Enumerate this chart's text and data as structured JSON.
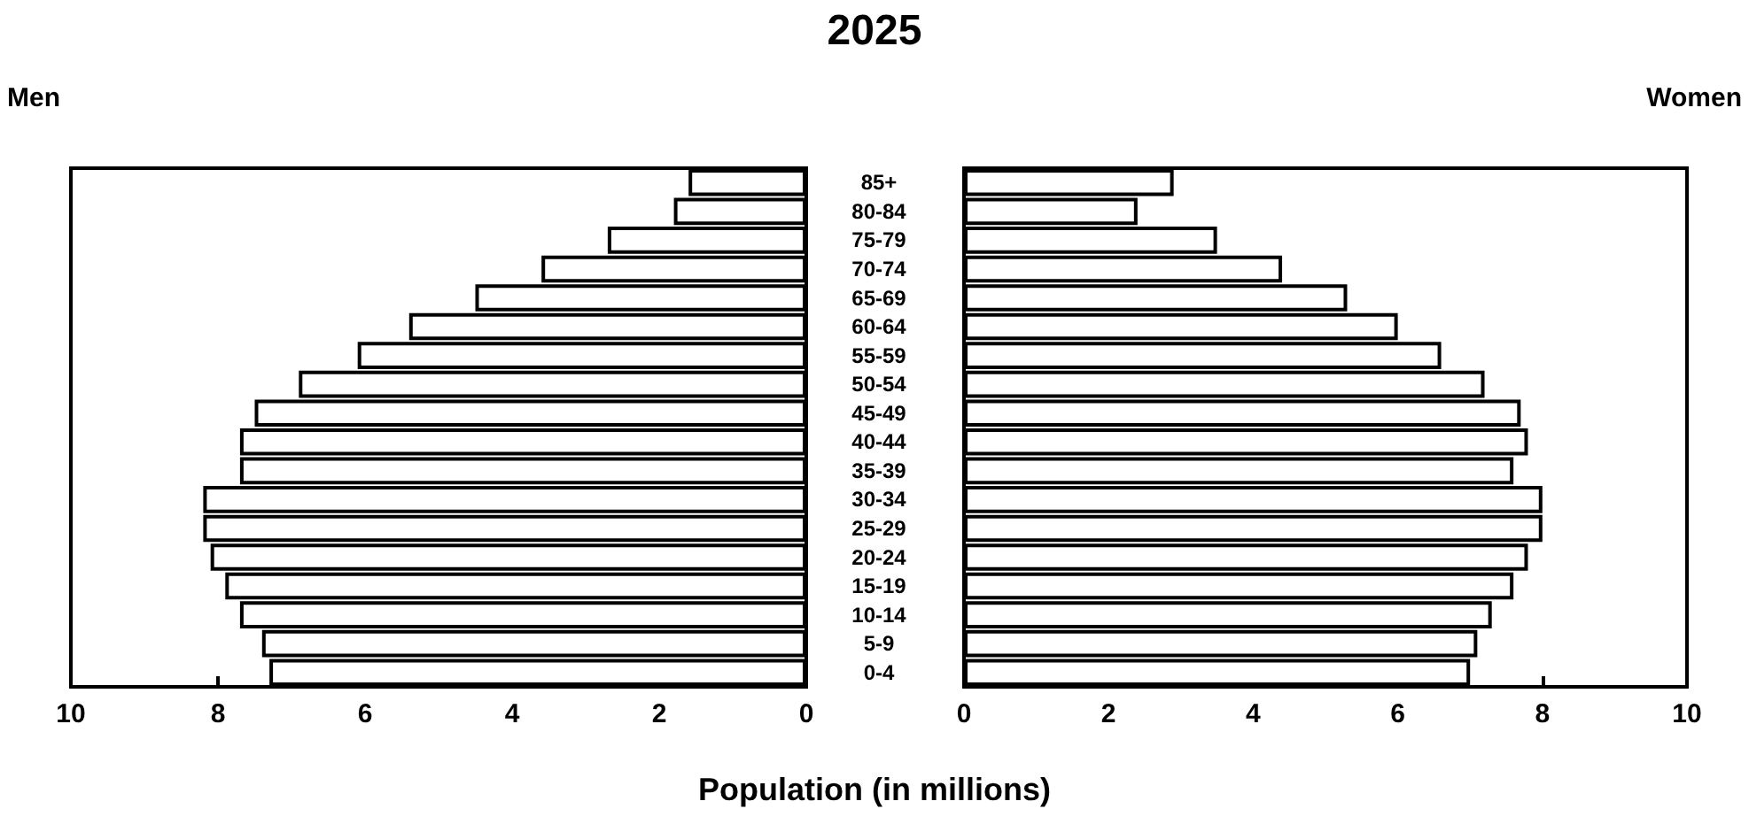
{
  "chart_data": [
    {
      "type": "bar",
      "orientation": "horizontal",
      "title": "2025",
      "xlabel": "Population (in millions)",
      "categories": [
        "85+",
        "80-84",
        "75-79",
        "70-74",
        "65-69",
        "60-64",
        "55-59",
        "50-54",
        "45-49",
        "40-44",
        "35-39",
        "30-34",
        "25-29",
        "20-24",
        "15-19",
        "10-14",
        "5-9",
        "0-4"
      ],
      "series": [
        {
          "name": "Men",
          "color": "#ffffff",
          "values": [
            1.6,
            1.8,
            2.7,
            3.6,
            4.5,
            5.4,
            6.1,
            6.9,
            7.5,
            7.7,
            7.7,
            8.2,
            8.2,
            8.1,
            7.9,
            7.7,
            7.4,
            7.3
          ]
        }
      ],
      "xlim": [
        10,
        0
      ],
      "xticks": [
        10,
        8,
        6,
        4,
        2,
        0
      ]
    },
    {
      "type": "bar",
      "orientation": "horizontal",
      "categories": [
        null,
        null,
        null,
        null,
        null,
        null,
        null,
        null,
        null,
        null,
        null,
        null,
        null,
        null,
        null,
        null,
        null,
        null
      ],
      "series": [
        {
          "name": "Women",
          "color": "#ffffff",
          "values": [
            2.9,
            2.4,
            3.5,
            4.4,
            5.3,
            6.0,
            6.6,
            7.2,
            7.7,
            7.8,
            7.6,
            8.0,
            8.0,
            7.8,
            7.6,
            7.3,
            7.1,
            7.0
          ]
        }
      ],
      "xlim": [
        0,
        10
      ],
      "xticks": [
        0,
        2,
        4,
        6,
        8,
        10
      ]
    }
  ]
}
